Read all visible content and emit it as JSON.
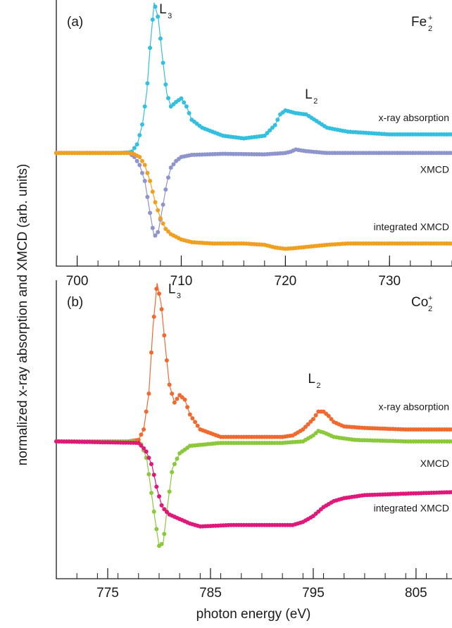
{
  "figure": {
    "ylabel": "normalized x-ray absorption and XMCD (arb. units)",
    "xlabel": "photon energy (eV)"
  },
  "chart_data": [
    {
      "type": "scatter",
      "panel_label": "(a)",
      "element": "Fe",
      "element_sub": "2",
      "element_sup": "+",
      "xlim": [
        698,
        736
      ],
      "ylim": [
        0,
        1
      ],
      "xticks": [
        700,
        710,
        720,
        730
      ],
      "xtick_labels": [
        "700",
        "710",
        "720",
        "730"
      ],
      "minor_step": 2,
      "peak_labels": [
        {
          "main": "L",
          "sub": "3",
          "x": 707.2,
          "y": 0.965
        },
        {
          "main": "L",
          "sub": "2",
          "x": 721.2,
          "y": 0.645
        }
      ],
      "series": [
        {
          "name": "x-ray absorption",
          "color": "#33bfe0",
          "points": [
            [
              698,
              0.425
            ],
            [
              704,
              0.425
            ],
            [
              705.2,
              0.428
            ],
            [
              705.8,
              0.46
            ],
            [
              706.3,
              0.54
            ],
            [
              706.7,
              0.66
            ],
            [
              707,
              0.82
            ],
            [
              707.4,
              0.99
            ],
            [
              707.8,
              0.93
            ],
            [
              708.2,
              0.78
            ],
            [
              708.6,
              0.65
            ],
            [
              709,
              0.6
            ],
            [
              709.6,
              0.62
            ],
            [
              710,
              0.63
            ],
            [
              710.5,
              0.6
            ],
            [
              711,
              0.55
            ],
            [
              712,
              0.52
            ],
            [
              714,
              0.49
            ],
            [
              716,
              0.48
            ],
            [
              718,
              0.49
            ],
            [
              719,
              0.53
            ],
            [
              719.5,
              0.57
            ],
            [
              720,
              0.585
            ],
            [
              721,
              0.575
            ],
            [
              722,
              0.57
            ],
            [
              723,
              0.545
            ],
            [
              724,
              0.52
            ],
            [
              726,
              0.505
            ],
            [
              730,
              0.495
            ],
            [
              736,
              0.495
            ]
          ],
          "labels": [
            {
              "text": "x-ray absorption",
              "y": 0.545
            }
          ]
        },
        {
          "name": "XMCD",
          "color": "#8e94cc",
          "points": [
            [
              698,
              0.425
            ],
            [
              705,
              0.425
            ],
            [
              705.5,
              0.41
            ],
            [
              706,
              0.38
            ],
            [
              706.5,
              0.32
            ],
            [
              707,
              0.2
            ],
            [
              707.4,
              0.11
            ],
            [
              707.8,
              0.13
            ],
            [
              708.2,
              0.22
            ],
            [
              708.6,
              0.31
            ],
            [
              709,
              0.37
            ],
            [
              709.5,
              0.395
            ],
            [
              710,
              0.41
            ],
            [
              711,
              0.418
            ],
            [
              714,
              0.422
            ],
            [
              718,
              0.42
            ],
            [
              720,
              0.425
            ],
            [
              720.5,
              0.43
            ],
            [
              721,
              0.438
            ],
            [
              722,
              0.432
            ],
            [
              724,
              0.425
            ],
            [
              730,
              0.425
            ],
            [
              736,
              0.425
            ]
          ],
          "labels": [
            {
              "text": "XMCD",
              "y": 0.35
            }
          ]
        },
        {
          "name": "integrated XMCD",
          "color": "#f0a020",
          "points": [
            [
              698,
              0.425
            ],
            [
              705,
              0.425
            ],
            [
              705.5,
              0.42
            ],
            [
              706,
              0.41
            ],
            [
              706.5,
              0.38
            ],
            [
              707,
              0.32
            ],
            [
              707.5,
              0.24
            ],
            [
              708,
              0.18
            ],
            [
              708.5,
              0.14
            ],
            [
              709,
              0.12
            ],
            [
              710,
              0.1
            ],
            [
              711,
              0.09
            ],
            [
              713,
              0.085
            ],
            [
              716,
              0.085
            ],
            [
              718,
              0.08
            ],
            [
              719,
              0.07
            ],
            [
              720,
              0.065
            ],
            [
              721,
              0.068
            ],
            [
              722,
              0.072
            ],
            [
              724,
              0.08
            ],
            [
              726,
              0.085
            ],
            [
              730,
              0.085
            ],
            [
              736,
              0.085
            ]
          ],
          "labels": [
            {
              "text": "integrated XMCD",
              "y": 0.135
            }
          ]
        }
      ]
    },
    {
      "type": "scatter",
      "panel_label": "(b)",
      "element": "Co",
      "element_sub": "2",
      "element_sup": "+",
      "xlim": [
        770,
        808.5
      ],
      "ylim": [
        0,
        1
      ],
      "xticks": [
        775,
        785,
        795,
        805
      ],
      "xtick_labels": [
        "775",
        "785",
        "795",
        "805"
      ],
      "minor_step": 2,
      "peak_labels": [
        {
          "main": "L",
          "sub": "3",
          "x": 780.2,
          "y": 0.97
        },
        {
          "main": "L",
          "sub": "2",
          "x": 793.8,
          "y": 0.67
        }
      ],
      "series": [
        {
          "name": "x-ray absorption",
          "color": "#f06a30",
          "points": [
            [
              770,
              0.46
            ],
            [
              777,
              0.46
            ],
            [
              778,
              0.465
            ],
            [
              778.5,
              0.5
            ],
            [
              779,
              0.62
            ],
            [
              779.4,
              0.84
            ],
            [
              779.8,
              0.99
            ],
            [
              780.2,
              0.92
            ],
            [
              780.6,
              0.78
            ],
            [
              781,
              0.65
            ],
            [
              781.5,
              0.59
            ],
            [
              782,
              0.615
            ],
            [
              782.5,
              0.6
            ],
            [
              783,
              0.55
            ],
            [
              784,
              0.5
            ],
            [
              786,
              0.475
            ],
            [
              789,
              0.475
            ],
            [
              792,
              0.475
            ],
            [
              793,
              0.48
            ],
            [
              794,
              0.5
            ],
            [
              795,
              0.535
            ],
            [
              795.5,
              0.56
            ],
            [
              796,
              0.56
            ],
            [
              796.5,
              0.545
            ],
            [
              797,
              0.525
            ],
            [
              798,
              0.51
            ],
            [
              800,
              0.505
            ],
            [
              804,
              0.5
            ],
            [
              808.5,
              0.5
            ]
          ],
          "labels": [
            {
              "text": "x-ray absorption",
              "y": 0.565
            }
          ]
        },
        {
          "name": "XMCD",
          "color": "#8cc83c",
          "points": [
            [
              770,
              0.46
            ],
            [
              777.5,
              0.46
            ],
            [
              778.3,
              0.45
            ],
            [
              778.8,
              0.4
            ],
            [
              779.2,
              0.3
            ],
            [
              779.6,
              0.2
            ],
            [
              780,
              0.11
            ],
            [
              780.4,
              0.12
            ],
            [
              780.8,
              0.24
            ],
            [
              781.3,
              0.37
            ],
            [
              782,
              0.42
            ],
            [
              783,
              0.445
            ],
            [
              786,
              0.455
            ],
            [
              792,
              0.455
            ],
            [
              794,
              0.46
            ],
            [
              795,
              0.48
            ],
            [
              795.5,
              0.495
            ],
            [
              796,
              0.49
            ],
            [
              797,
              0.475
            ],
            [
              799,
              0.465
            ],
            [
              804,
              0.46
            ],
            [
              808.5,
              0.46
            ]
          ],
          "labels": [
            {
              "text": "XMCD",
              "y": 0.375
            }
          ]
        },
        {
          "name": "integrated XMCD",
          "color": "#e0187a",
          "points": [
            [
              770,
              0.46
            ],
            [
              778,
              0.455
            ],
            [
              778.7,
              0.43
            ],
            [
              779.3,
              0.38
            ],
            [
              779.8,
              0.3
            ],
            [
              780.3,
              0.24
            ],
            [
              781,
              0.215
            ],
            [
              782,
              0.2
            ],
            [
              783,
              0.185
            ],
            [
              784,
              0.175
            ],
            [
              787,
              0.18
            ],
            [
              790,
              0.18
            ],
            [
              793,
              0.18
            ],
            [
              794,
              0.19
            ],
            [
              795,
              0.21
            ],
            [
              796,
              0.24
            ],
            [
              797,
              0.26
            ],
            [
              798,
              0.27
            ],
            [
              800,
              0.28
            ],
            [
              804,
              0.285
            ],
            [
              808.5,
              0.29
            ]
          ],
          "labels": [
            {
              "text": "integrated XMCD",
              "y": 0.225
            }
          ]
        }
      ]
    }
  ]
}
